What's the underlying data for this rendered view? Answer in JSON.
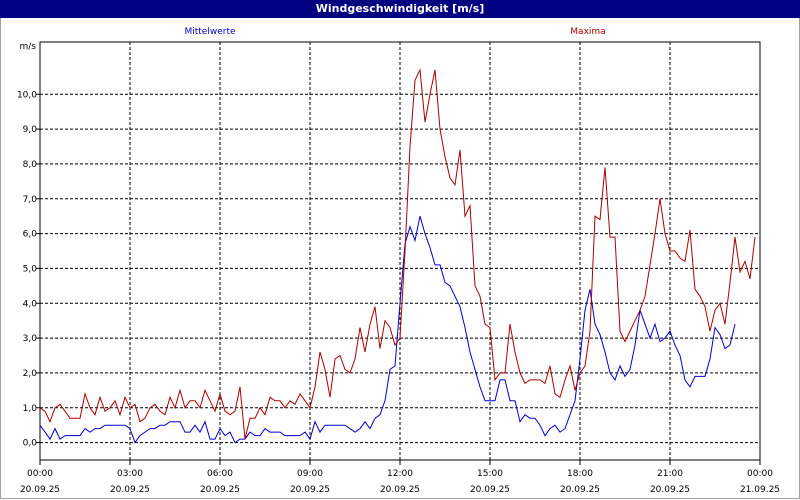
{
  "window": {
    "title": "Windgeschwindigkeit [m/s]"
  },
  "chart_data": {
    "type": "line",
    "title": "Windgeschwindigkeit [m/s]",
    "ylabel": "m/s",
    "ylim": [
      -0.5,
      11.5
    ],
    "y_ticks": [
      "0,0",
      "1,0",
      "2,0",
      "3,0",
      "4,0",
      "5,0",
      "6,0",
      "7,0",
      "8,0",
      "9,0",
      "10,0"
    ],
    "y_tick_values": [
      0,
      1,
      2,
      3,
      4,
      5,
      6,
      7,
      8,
      9,
      10
    ],
    "x_range_hours": [
      0,
      24
    ],
    "x_ticks": [
      {
        "time": "00:00",
        "date": "20.09.25"
      },
      {
        "time": "03:00",
        "date": "20.09.25"
      },
      {
        "time": "06:00",
        "date": "20.09.25"
      },
      {
        "time": "09:00",
        "date": "20.09.25"
      },
      {
        "time": "12:00",
        "date": "20.09.25"
      },
      {
        "time": "15:00",
        "date": "20.09.25"
      },
      {
        "time": "18:00",
        "date": "20.09.25"
      },
      {
        "time": "21:00",
        "date": "20.09.25"
      },
      {
        "time": "00:00",
        "date": "21.09.25"
      }
    ],
    "grid": true,
    "interval_minutes": 10,
    "series": [
      {
        "name": "Mittelwerte",
        "color": "#0000cc",
        "values": [
          0.5,
          0.3,
          0.1,
          0.4,
          0.1,
          0.2,
          0.2,
          0.2,
          0.2,
          0.4,
          0.3,
          0.4,
          0.4,
          0.5,
          0.5,
          0.5,
          0.5,
          0.5,
          0.4,
          0.0,
          0.2,
          0.3,
          0.4,
          0.4,
          0.5,
          0.5,
          0.6,
          0.6,
          0.6,
          0.3,
          0.3,
          0.5,
          0.3,
          0.6,
          0.1,
          0.1,
          0.4,
          0.2,
          0.3,
          0.0,
          0.1,
          0.1,
          0.3,
          0.2,
          0.2,
          0.4,
          0.3,
          0.3,
          0.3,
          0.2,
          0.2,
          0.2,
          0.2,
          0.3,
          0.1,
          0.6,
          0.3,
          0.5,
          0.5,
          0.5,
          0.5,
          0.5,
          0.4,
          0.3,
          0.4,
          0.6,
          0.4,
          0.7,
          0.8,
          1.2,
          2.1,
          2.2,
          4.0,
          5.7,
          6.2,
          5.8,
          6.5,
          6.0,
          5.6,
          5.1,
          5.1,
          4.6,
          4.5,
          4.2,
          3.9,
          3.3,
          2.6,
          2.1,
          1.6,
          1.2,
          1.2,
          1.2,
          1.8,
          1.8,
          1.2,
          1.2,
          0.6,
          0.8,
          0.7,
          0.7,
          0.5,
          0.2,
          0.4,
          0.5,
          0.3,
          0.4,
          0.8,
          1.2,
          2.4,
          3.8,
          4.4,
          3.4,
          3.1,
          2.6,
          2.0,
          1.8,
          2.2,
          1.9,
          2.1,
          2.8,
          3.8,
          3.4,
          3.0,
          3.4,
          2.9,
          3.0,
          3.2,
          2.8,
          2.5,
          1.8,
          1.6,
          1.9,
          1.9,
          1.9,
          2.4,
          3.3,
          3.1,
          2.7,
          2.8,
          3.4
        ]
      },
      {
        "name": "Maxima",
        "color": "#aa0000",
        "values": [
          1.0,
          0.9,
          0.6,
          1.0,
          1.1,
          0.9,
          0.7,
          0.7,
          0.7,
          1.4,
          1.0,
          0.8,
          1.3,
          0.9,
          1.0,
          1.2,
          0.8,
          1.3,
          1.0,
          1.1,
          0.6,
          0.7,
          1.0,
          1.1,
          0.9,
          0.8,
          1.3,
          1.0,
          1.5,
          1.0,
          1.2,
          1.2,
          1.0,
          1.5,
          1.2,
          0.9,
          1.4,
          0.9,
          0.8,
          0.9,
          1.6,
          0.1,
          0.7,
          0.7,
          1.0,
          0.8,
          1.3,
          1.2,
          1.2,
          1.0,
          1.2,
          1.1,
          1.4,
          1.2,
          1.0,
          1.6,
          2.6,
          2.1,
          1.3,
          2.4,
          2.5,
          2.1,
          2.0,
          2.4,
          3.3,
          2.6,
          3.4,
          3.9,
          2.7,
          3.5,
          3.3,
          2.8,
          3.0,
          5.5,
          8.5,
          10.4,
          10.7,
          9.2,
          10.0,
          10.7,
          9.0,
          8.2,
          7.6,
          7.4,
          8.4,
          6.5,
          6.8,
          4.5,
          4.2,
          3.4,
          3.3,
          1.8,
          2.0,
          2.0,
          3.4,
          2.6,
          2.0,
          1.7,
          1.8,
          1.8,
          1.8,
          1.7,
          2.2,
          1.4,
          1.3,
          1.8,
          2.2,
          1.5,
          2.0,
          2.2,
          3.2,
          6.5,
          6.4,
          7.9,
          5.9,
          5.9,
          3.2,
          2.9,
          3.2,
          3.5,
          3.8,
          4.2,
          5.1,
          6.0,
          7.0,
          6.0,
          5.5,
          5.5,
          5.3,
          5.2,
          6.1,
          4.4,
          4.2,
          3.9,
          3.2,
          3.8,
          4.0,
          3.4,
          4.6,
          5.9,
          4.9,
          5.2,
          4.7,
          5.9
        ]
      }
    ]
  }
}
